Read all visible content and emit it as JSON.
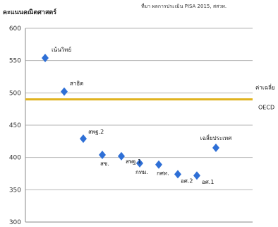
{
  "chart_data": {
    "type": "scatter",
    "title": "คะแนนคณิตศาสตร์",
    "source": "ที่มา ผลการประเมิน PISA 2015, สสวท.",
    "xlabel": "",
    "ylabel": "",
    "ylim": [
      300,
      600
    ],
    "yticks": [
      300,
      350,
      400,
      450,
      500,
      550,
      600
    ],
    "grid": true,
    "legend": "none",
    "marker_color": "#2e6fd6",
    "reference_line": {
      "value": 490,
      "color": "#e0b320",
      "label_line1": "ค่าเฉลี่ย",
      "label_line2": "OECD"
    },
    "points": [
      {
        "label": "เน้นวิทย์",
        "value": 554
      },
      {
        "label": "สาธิต",
        "value": 502
      },
      {
        "label": "สพฐ.2",
        "value": 429
      },
      {
        "label": "สช.",
        "value": 404
      },
      {
        "label": "สพฐ.1",
        "value": 402
      },
      {
        "label": "กทม.",
        "value": 391
      },
      {
        "label": "กศท.",
        "value": 389
      },
      {
        "label": "อศ.2",
        "value": 374
      },
      {
        "label": "อศ.1",
        "value": 372
      },
      {
        "label": "เฉลี่ยประเทศ",
        "value": 415
      }
    ]
  }
}
